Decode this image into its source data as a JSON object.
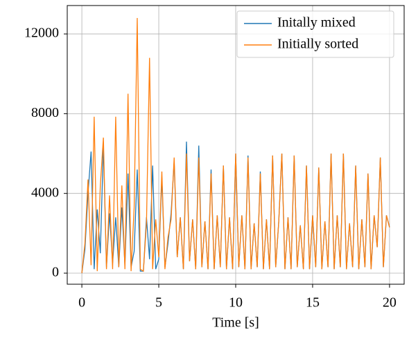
{
  "chart_data": {
    "type": "line",
    "xlabel": "Time [s]",
    "x": [
      0,
      0.2,
      0.4,
      0.6,
      0.8,
      1,
      1.2,
      1.4,
      1.6,
      1.8,
      2,
      2.2,
      2.4,
      2.6,
      2.8,
      3,
      3.2,
      3.4,
      3.6,
      3.8,
      4,
      4.2,
      4.4,
      4.6,
      4.8,
      5,
      5.2,
      5.4,
      5.6,
      5.8,
      6,
      6.2,
      6.4,
      6.6,
      6.8,
      7,
      7.2,
      7.4,
      7.6,
      7.8,
      8,
      8.2,
      8.4,
      8.6,
      8.8,
      9,
      9.2,
      9.4,
      9.6,
      9.8,
      10,
      10.2,
      10.4,
      10.6,
      10.8,
      11,
      11.2,
      11.4,
      11.6,
      11.8,
      12,
      12.2,
      12.4,
      12.6,
      12.8,
      13,
      13.2,
      13.4,
      13.6,
      13.8,
      14,
      14.2,
      14.4,
      14.6,
      14.8,
      15,
      15.2,
      15.4,
      15.6,
      15.8,
      16,
      16.2,
      16.4,
      16.6,
      16.8,
      17,
      17.2,
      17.4,
      17.6,
      17.8,
      18,
      18.2,
      18.4,
      18.6,
      18.8,
      19,
      19.2,
      19.4,
      19.6,
      19.8,
      20
    ],
    "series": [
      {
        "name": "Initally mixed",
        "color": "#1f77b4",
        "values": [
          0,
          1200,
          4000,
          6100,
          200,
          3200,
          1000,
          6400,
          300,
          3000,
          500,
          2800,
          300,
          3300,
          400,
          5000,
          300,
          1100,
          5200,
          100,
          100,
          2800,
          700,
          5400,
          200,
          700,
          4800,
          300,
          1500,
          3000,
          5600,
          800,
          2800,
          200,
          6600,
          600,
          2700,
          200,
          6400,
          300,
          2600,
          200,
          5200,
          200,
          2900,
          300,
          5400,
          200,
          2800,
          200,
          6000,
          300,
          2900,
          200,
          5900,
          200,
          2500,
          300,
          5100,
          200,
          2700,
          200,
          5900,
          300,
          2600,
          6000,
          200,
          2800,
          200,
          5900,
          300,
          2400,
          200,
          5400,
          200,
          2900,
          300,
          5300,
          200,
          2600,
          300,
          6000,
          200,
          2900,
          300,
          6000,
          200,
          2500,
          300,
          5400,
          200,
          2700,
          300,
          5000,
          200,
          2900,
          1300,
          5800,
          300,
          2900,
          2300
        ]
      },
      {
        "name": "Initially sorted",
        "color": "#ff7f0e",
        "values": [
          0,
          1500,
          4700,
          400,
          7850,
          100,
          4400,
          6800,
          200,
          3900,
          200,
          7850,
          300,
          4400,
          200,
          9000,
          100,
          3300,
          12800,
          200,
          100,
          2500,
          10800,
          200,
          2700,
          800,
          5100,
          200,
          1800,
          2700,
          5800,
          800,
          2800,
          200,
          6000,
          600,
          2700,
          200,
          5800,
          300,
          2600,
          200,
          5000,
          200,
          2900,
          300,
          5400,
          200,
          2800,
          200,
          6000,
          300,
          2900,
          200,
          5800,
          200,
          2500,
          300,
          5000,
          200,
          2700,
          200,
          5900,
          300,
          2600,
          6000,
          200,
          2800,
          200,
          5900,
          300,
          2400,
          200,
          5400,
          200,
          2900,
          300,
          5300,
          200,
          2600,
          300,
          6000,
          200,
          2900,
          300,
          6000,
          200,
          2500,
          300,
          5400,
          200,
          2700,
          300,
          5000,
          200,
          2900,
          1300,
          5800,
          300,
          2900,
          2300
        ]
      }
    ],
    "xlim": [
      -0.95,
      20.95
    ],
    "ylim": [
      -555,
      13425
    ],
    "xticks": [
      0,
      5,
      10,
      15,
      20
    ],
    "yticks": [
      0,
      4000,
      8000,
      12000
    ],
    "grid": true,
    "legend": "upper right"
  }
}
